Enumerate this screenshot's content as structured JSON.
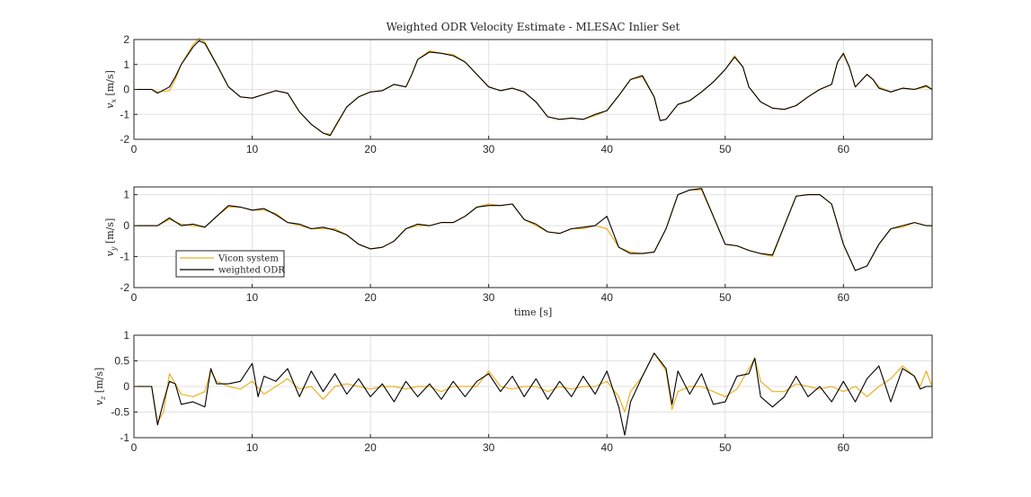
{
  "figure_title": "Weighted ODR Velocity Estimate - MLESAC Inlier Set",
  "colors": {
    "vicon": "#EDB120",
    "odr": "#000000",
    "grid": "#e1e1e1",
    "axis": "#262626"
  },
  "legend": {
    "items": [
      "Vicon system",
      "weighted ODR"
    ],
    "location": "southwest of middle panel"
  },
  "chart_data": [
    {
      "type": "line",
      "title": "Weighted ODR Velocity Estimate - MLESAC Inlier Set",
      "xlabel": "",
      "ylabel": "v_x [m/s]",
      "ylabel_main": "v",
      "ylabel_sub": "x",
      "ylabel_unit": " [m/s]",
      "xlim": [
        0,
        67.5
      ],
      "ylim": [
        -2,
        2
      ],
      "xticks": [
        0,
        10,
        20,
        30,
        40,
        50,
        60
      ],
      "yticks": [
        2,
        1,
        0,
        -1,
        -2
      ],
      "xtick_labels": [
        "0",
        "10",
        "20",
        "30",
        "40",
        "50",
        "60"
      ],
      "ytick_labels": [
        "2",
        "1",
        "0",
        "-1",
        "-2"
      ],
      "grid": true,
      "series": [
        {
          "name": "Vicon system",
          "color": "#EDB120",
          "x": [
            0,
            1.5,
            2,
            3,
            3.5,
            4,
            5,
            5.5,
            6,
            7,
            8,
            9,
            10,
            11,
            12,
            13,
            14,
            15,
            16,
            16.6,
            17,
            18,
            19,
            20,
            21,
            22,
            23,
            23.5,
            24,
            25,
            26,
            27,
            28,
            29,
            30,
            31,
            32,
            33,
            34,
            35,
            36,
            37,
            38,
            39,
            40,
            41,
            42,
            43,
            44,
            44.5,
            45,
            46,
            47,
            48,
            49,
            50,
            50.8,
            51.5,
            52,
            53,
            54,
            55,
            56,
            57,
            58,
            59,
            59.5,
            60,
            60.5,
            61,
            62,
            62.5,
            63,
            64,
            65,
            66,
            67,
            67.5
          ],
          "y": [
            0,
            0,
            -0.1,
            -0.05,
            0.4,
            1.0,
            1.8,
            2.05,
            1.9,
            1.0,
            0.1,
            -0.3,
            -0.35,
            -0.2,
            -0.05,
            -0.15,
            -0.9,
            -1.4,
            -1.75,
            -1.8,
            -1.55,
            -0.7,
            -0.3,
            -0.1,
            -0.05,
            0.2,
            0.1,
            0.6,
            1.2,
            1.55,
            1.45,
            1.4,
            1.1,
            0.6,
            0.1,
            -0.05,
            0.05,
            -0.1,
            -0.5,
            -1.1,
            -1.2,
            -1.15,
            -1.2,
            -1.05,
            -0.85,
            -0.25,
            0.4,
            0.5,
            -0.3,
            -1.25,
            -1.2,
            -0.6,
            -0.45,
            -0.1,
            0.3,
            0.8,
            1.35,
            0.9,
            0.1,
            -0.5,
            -0.75,
            -0.8,
            -0.65,
            -0.3,
            0.0,
            0.2,
            1.1,
            1.4,
            0.9,
            0.1,
            0.6,
            0.4,
            0.1,
            -0.1,
            0.05,
            0.0,
            0.1,
            0.0
          ]
        },
        {
          "name": "weighted ODR",
          "color": "#000000",
          "x": [
            0,
            1.5,
            2,
            3,
            3.5,
            4,
            5,
            5.5,
            6,
            7,
            8,
            9,
            10,
            11,
            12,
            13,
            14,
            15,
            16,
            16.6,
            17,
            18,
            19,
            20,
            21,
            22,
            23,
            23.5,
            24,
            25,
            26,
            27,
            28,
            29,
            30,
            31,
            32,
            33,
            34,
            35,
            36,
            37,
            38,
            39,
            40,
            41,
            42,
            43,
            44,
            44.5,
            45,
            46,
            47,
            48,
            49,
            50,
            50.8,
            51.5,
            52,
            53,
            54,
            55,
            56,
            57,
            58,
            59,
            59.5,
            60,
            60.5,
            61,
            62,
            62.5,
            63,
            64,
            65,
            66,
            67,
            67.5
          ],
          "y": [
            0,
            0,
            -0.15,
            0.1,
            0.5,
            1.0,
            1.7,
            1.95,
            1.85,
            1.0,
            0.1,
            -0.3,
            -0.35,
            -0.2,
            -0.05,
            -0.15,
            -0.9,
            -1.4,
            -1.75,
            -1.85,
            -1.5,
            -0.7,
            -0.3,
            -0.1,
            -0.05,
            0.2,
            0.1,
            0.6,
            1.2,
            1.5,
            1.45,
            1.35,
            1.1,
            0.6,
            0.1,
            -0.05,
            0.05,
            -0.1,
            -0.5,
            -1.1,
            -1.2,
            -1.15,
            -1.2,
            -1.0,
            -0.85,
            -0.25,
            0.4,
            0.55,
            -0.3,
            -1.25,
            -1.2,
            -0.6,
            -0.45,
            -0.1,
            0.3,
            0.8,
            1.3,
            0.9,
            0.1,
            -0.5,
            -0.75,
            -0.8,
            -0.65,
            -0.3,
            0.0,
            0.2,
            1.1,
            1.45,
            0.9,
            0.1,
            0.6,
            0.4,
            0.05,
            -0.1,
            0.05,
            0.0,
            0.15,
            0.0
          ]
        }
      ]
    },
    {
      "type": "line",
      "title": "",
      "xlabel": "time [s]",
      "ylabel": "v_y [m/s]",
      "ylabel_main": "v",
      "ylabel_sub": "y",
      "ylabel_unit": " [m/s]",
      "xlim": [
        0,
        67.5
      ],
      "ylim": [
        -2,
        1.25
      ],
      "xticks": [
        0,
        10,
        20,
        30,
        40,
        50,
        60
      ],
      "yticks": [
        1,
        0,
        -1,
        -2
      ],
      "xtick_labels": [
        "0",
        "10",
        "20",
        "30",
        "40",
        "50",
        "60"
      ],
      "ytick_labels": [
        "1",
        "0",
        "-1",
        "-2"
      ],
      "grid": true,
      "series": [
        {
          "name": "Vicon system",
          "color": "#EDB120",
          "x": [
            0,
            2,
            3,
            4,
            5,
            6,
            7,
            8,
            9,
            10,
            11,
            12,
            13,
            14,
            15,
            16,
            17,
            18,
            19,
            20,
            21,
            22,
            23,
            24,
            25,
            26,
            27,
            28,
            29,
            30,
            31,
            32,
            33,
            34,
            35,
            36,
            37,
            38,
            39,
            40,
            41,
            42,
            43,
            44,
            45,
            46,
            47,
            48,
            49,
            50,
            51,
            52,
            53,
            54,
            55,
            56,
            57,
            58,
            59,
            60,
            61,
            62,
            63,
            64,
            65,
            66,
            67,
            67.5
          ],
          "y": [
            0,
            0,
            0.2,
            0.05,
            0.0,
            -0.05,
            0.3,
            0.6,
            0.6,
            0.5,
            0.5,
            0.4,
            0.1,
            0.0,
            -0.1,
            -0.1,
            -0.1,
            -0.3,
            -0.6,
            -0.75,
            -0.7,
            -0.5,
            -0.1,
            0.0,
            0.0,
            0.1,
            0.1,
            0.3,
            0.6,
            0.7,
            0.65,
            0.7,
            0.2,
            0.0,
            -0.2,
            -0.25,
            -0.1,
            -0.1,
            0.0,
            -0.1,
            -0.7,
            -0.85,
            -0.9,
            -0.85,
            -0.1,
            1.0,
            1.15,
            1.15,
            0.3,
            -0.6,
            -0.65,
            -0.8,
            -0.9,
            -1.0,
            0.0,
            0.95,
            1.0,
            1.0,
            0.7,
            -0.6,
            -1.45,
            -1.3,
            -0.6,
            -0.1,
            -0.05,
            0.1,
            0.0,
            0.0
          ]
        },
        {
          "name": "weighted ODR",
          "color": "#000000",
          "x": [
            0,
            2,
            3,
            4,
            5,
            6,
            7,
            8,
            9,
            10,
            11,
            12,
            13,
            14,
            15,
            16,
            17,
            18,
            19,
            20,
            21,
            22,
            23,
            24,
            25,
            26,
            27,
            28,
            29,
            30,
            31,
            32,
            33,
            34,
            35,
            36,
            37,
            38,
            39,
            40,
            41,
            42,
            43,
            44,
            45,
            46,
            47,
            48,
            49,
            50,
            51,
            52,
            53,
            54,
            55,
            56,
            57,
            58,
            59,
            60,
            61,
            62,
            63,
            64,
            65,
            66,
            67,
            67.5
          ],
          "y": [
            0,
            0,
            0.25,
            0.0,
            0.05,
            -0.05,
            0.3,
            0.65,
            0.6,
            0.5,
            0.55,
            0.35,
            0.1,
            0.05,
            -0.1,
            -0.05,
            -0.15,
            -0.3,
            -0.6,
            -0.75,
            -0.7,
            -0.5,
            -0.1,
            0.05,
            0.0,
            0.1,
            0.1,
            0.3,
            0.6,
            0.65,
            0.65,
            0.7,
            0.2,
            0.05,
            -0.2,
            -0.25,
            -0.1,
            -0.05,
            0.0,
            0.3,
            -0.7,
            -0.9,
            -0.9,
            -0.85,
            -0.1,
            1.0,
            1.15,
            1.2,
            0.3,
            -0.6,
            -0.65,
            -0.8,
            -0.9,
            -0.95,
            0.0,
            0.95,
            1.0,
            1.0,
            0.7,
            -0.6,
            -1.45,
            -1.3,
            -0.6,
            -0.1,
            0.0,
            0.1,
            0.0,
            0.0
          ]
        }
      ]
    },
    {
      "type": "line",
      "title": "",
      "xlabel": "",
      "ylabel": "v_z [m/s]",
      "ylabel_main": "v",
      "ylabel_sub": "z",
      "ylabel_unit": " [m/s]",
      "xlim": [
        0,
        67.5
      ],
      "ylim": [
        -1,
        1
      ],
      "xticks": [
        0,
        10,
        20,
        30,
        40,
        50,
        60
      ],
      "yticks": [
        1,
        0.5,
        0,
        -0.5,
        -1
      ],
      "xtick_labels": [
        "0",
        "10",
        "20",
        "30",
        "40",
        "50",
        "60"
      ],
      "ytick_labels": [
        "1",
        "0.5",
        "0",
        "-0.5",
        "-1"
      ],
      "grid": true,
      "series": [
        {
          "name": "Vicon system",
          "color": "#EDB120",
          "x": [
            0,
            1.5,
            2,
            2.5,
            3,
            3.5,
            4,
            5,
            6,
            6.5,
            7,
            8,
            9,
            10,
            11,
            12,
            13,
            14,
            15,
            16,
            17,
            18,
            19,
            20,
            21,
            22,
            23,
            24,
            25,
            26,
            27,
            28,
            29,
            30,
            31,
            32,
            33,
            34,
            35,
            36,
            37,
            38,
            39,
            40,
            41,
            41.5,
            42,
            43,
            44,
            45,
            45.5,
            46,
            47,
            48,
            49,
            50,
            51,
            52,
            52.5,
            53,
            54,
            55,
            56,
            57,
            58,
            59,
            60,
            61,
            62,
            63,
            64,
            65,
            66,
            66.5,
            67,
            67.5
          ],
          "y": [
            0,
            0,
            -0.7,
            -0.5,
            0.25,
            0.05,
            -0.15,
            -0.2,
            -0.1,
            0.3,
            0.1,
            0.0,
            -0.05,
            0.1,
            -0.15,
            0.0,
            0.15,
            -0.05,
            0.0,
            -0.25,
            0.0,
            0.05,
            0.0,
            -0.05,
            0.0,
            0.0,
            -0.05,
            0.0,
            0.0,
            -0.1,
            0.0,
            0.0,
            0.0,
            0.3,
            0.0,
            -0.05,
            0.0,
            0.0,
            -0.1,
            0.0,
            -0.05,
            0.0,
            0.0,
            0.1,
            -0.2,
            -0.5,
            -0.1,
            0.2,
            0.65,
            0.3,
            -0.45,
            -0.1,
            0.0,
            0.0,
            -0.1,
            -0.2,
            -0.05,
            0.35,
            0.55,
            0.1,
            -0.1,
            -0.1,
            0.05,
            0.0,
            -0.05,
            0.0,
            -0.1,
            0.0,
            -0.2,
            0.0,
            0.15,
            0.4,
            0.2,
            0.0,
            0.3,
            0.0
          ]
        },
        {
          "name": "weighted ODR",
          "color": "#000000",
          "x": [
            0,
            1.5,
            2,
            2.5,
            3,
            3.5,
            4,
            5,
            6,
            6.5,
            7,
            8,
            9,
            10,
            10.5,
            11,
            12,
            13,
            14,
            15,
            16,
            17,
            18,
            19,
            20,
            21,
            22,
            23,
            24,
            25,
            26,
            27,
            28,
            29,
            30,
            31,
            32,
            33,
            34,
            35,
            36,
            37,
            38,
            39,
            40,
            41,
            41.5,
            42,
            43,
            44,
            45,
            45.5,
            46,
            47,
            48,
            49,
            50,
            51,
            52,
            52.5,
            53,
            54,
            55,
            56,
            57,
            58,
            59,
            60,
            61,
            62,
            63,
            64,
            65,
            66,
            66.5,
            67,
            67.5
          ],
          "y": [
            0,
            0,
            -0.75,
            -0.3,
            0.1,
            0.05,
            -0.35,
            -0.3,
            -0.4,
            0.35,
            0.05,
            0.05,
            0.1,
            0.45,
            -0.2,
            0.2,
            0.1,
            0.35,
            -0.2,
            0.3,
            -0.1,
            0.25,
            -0.15,
            0.15,
            -0.2,
            0.05,
            -0.3,
            0.1,
            -0.2,
            0.05,
            -0.25,
            0.1,
            -0.2,
            0.1,
            0.25,
            -0.1,
            0.2,
            -0.2,
            0.15,
            -0.25,
            0.1,
            -0.2,
            0.2,
            -0.15,
            0.3,
            -0.4,
            -0.95,
            -0.3,
            0.2,
            0.65,
            0.35,
            -0.35,
            0.3,
            -0.15,
            0.25,
            -0.35,
            -0.3,
            0.2,
            0.25,
            0.55,
            -0.2,
            -0.4,
            -0.2,
            0.2,
            -0.2,
            0.0,
            -0.3,
            0.1,
            -0.3,
            0.15,
            0.4,
            -0.3,
            0.35,
            0.2,
            -0.05,
            0.0,
            0.0
          ]
        }
      ]
    }
  ]
}
